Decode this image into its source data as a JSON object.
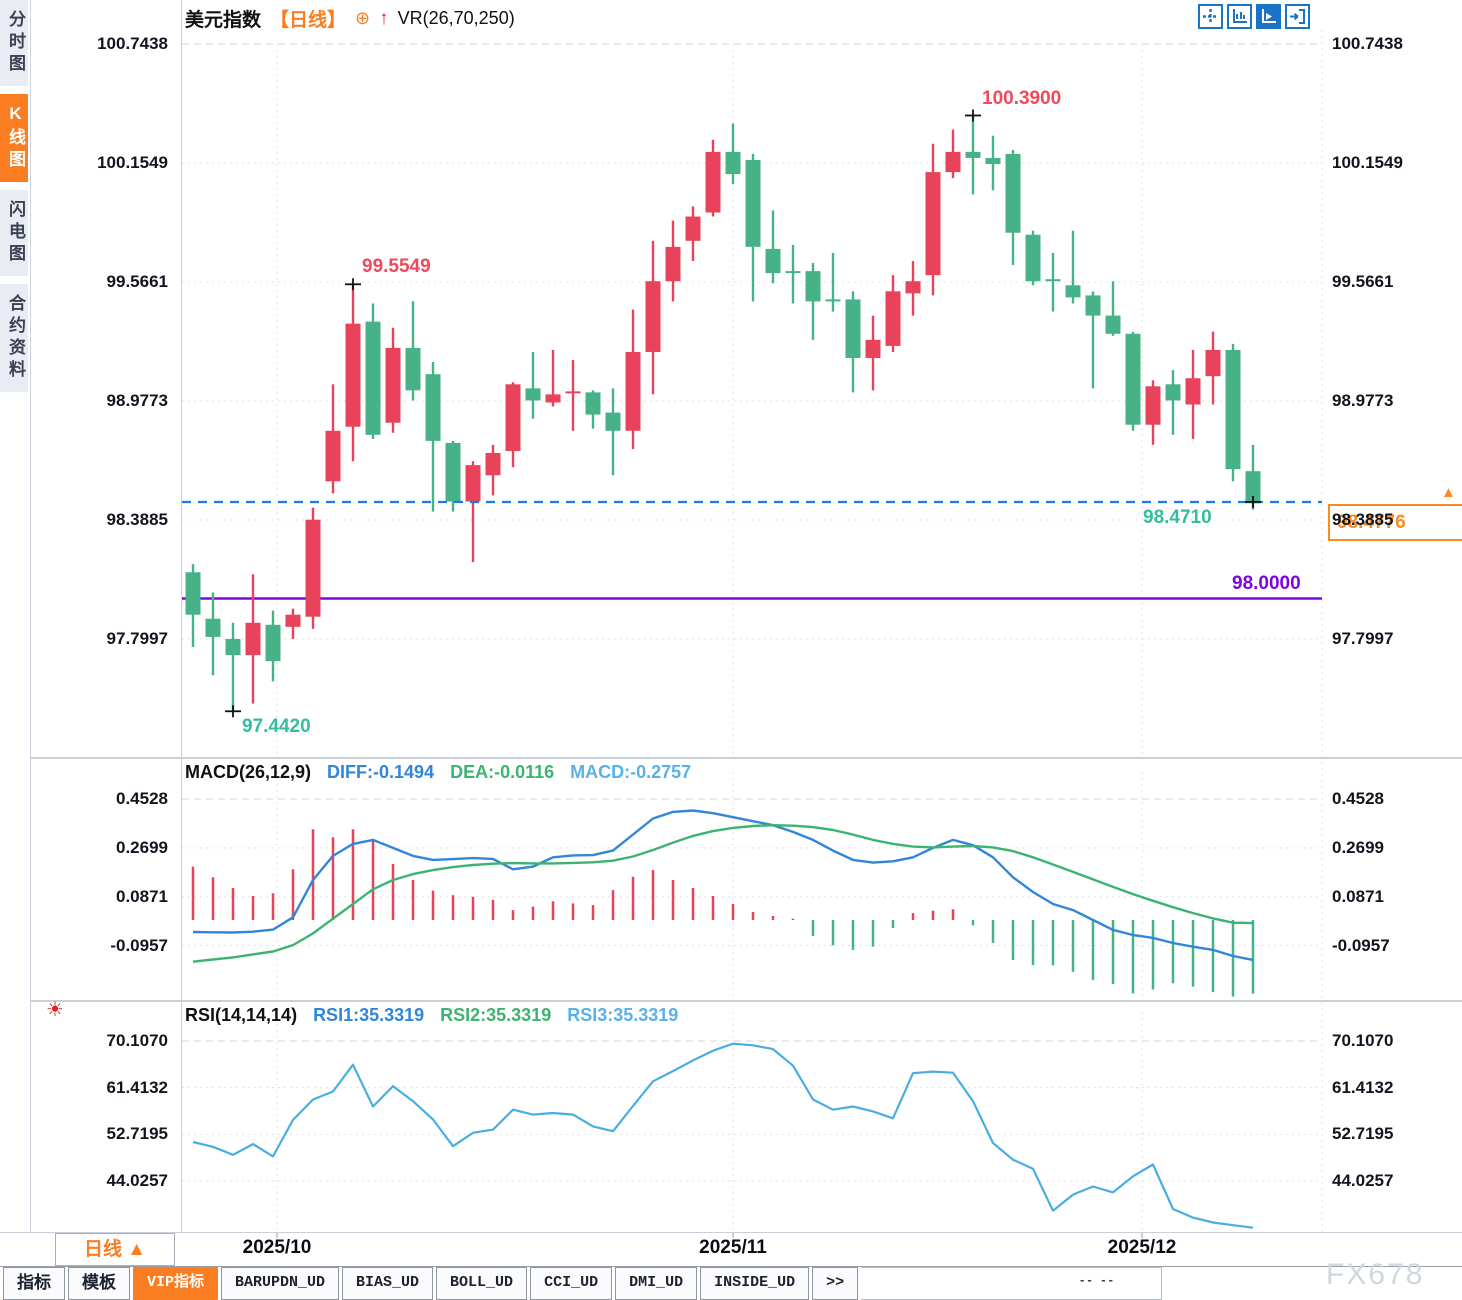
{
  "header": {
    "symbol": "美元指数",
    "period_tag": "【日线】",
    "plus_icon": "⊕",
    "arrow_icon": "↑",
    "indicator_label": "VR(26,70,250)",
    "toolbar_icons": [
      "pan-crosshair-icon",
      "axis-range-icon",
      "auto-scale-icon",
      "jump-to-latest-icon"
    ]
  },
  "sidebar": {
    "items": [
      {
        "label": "分时图",
        "selected": false
      },
      {
        "label": "K线图",
        "selected": true
      },
      {
        "label": "闪电图",
        "selected": false
      },
      {
        "label": "合约资料",
        "selected": false
      }
    ]
  },
  "price_axis_labels": [
    "100.7438",
    "100.1549",
    "99.5661",
    "98.9773",
    "98.3885",
    "97.7997"
  ],
  "annotations": {
    "swing_high": "100.3900",
    "swing_high_oct": "99.5549",
    "swing_low": "97.4420",
    "last_close_label": "98.4710",
    "current_price_box": "98.4776",
    "price_marker": "▲",
    "alert_line_label": "98.0000"
  },
  "macd_pane": {
    "title": "MACD(26,12,9)",
    "diff_label": "DIFF:-0.1494",
    "dea_label": "DEA:-0.0116",
    "macd_label": "MACD:-0.2757",
    "axis_labels": [
      "0.4528",
      "0.2699",
      "0.0871",
      "-0.0957"
    ]
  },
  "rsi_pane": {
    "title": "RSI(14,14,14)",
    "rsi1_label": "RSI1:35.3319",
    "rsi2_label": "RSI2:35.3319",
    "rsi3_label": "RSI3:35.3319",
    "axis_labels": [
      "70.1070",
      "61.4132",
      "52.7195",
      "44.0257"
    ],
    "settings_icon": "☀"
  },
  "timeline": {
    "period_selector": "日线",
    "period_arrow": "▲",
    "dates": [
      "2025/10",
      "2025/11",
      "2025/12"
    ],
    "date_indices": [
      4.2,
      27,
      47.45
    ]
  },
  "bottom_tabs": {
    "labels": [
      "指标",
      "模板",
      "VIP指标",
      "BARUPDN_UD",
      "BIAS_UD",
      "BOLL_UD",
      "CCI_UD",
      "DMI_UD",
      "INSIDE_UD",
      ">>"
    ],
    "selected_index": 2,
    "artifact": "-- --"
  },
  "watermark": "FX678",
  "colors": {
    "up": "#e8435a",
    "down": "#47b287",
    "accent_orange": "#fb7d21",
    "alert_purple": "#7d05e0",
    "price_line_blue": "#1a7ce8",
    "diff_blue": "#3186d9",
    "dea_green": "#3cb371",
    "rsi_lightblue": "#49ade2"
  },
  "chart_data": {
    "type": "candlestick",
    "title": "美元指数 日线",
    "panes": [
      "price",
      "MACD(26,12,9)",
      "RSI(14,14,14)"
    ],
    "x_axis": {
      "labels": [
        "2025/10",
        "2025/11",
        "2025/12"
      ],
      "label_indices": [
        4.2,
        27,
        47.45
      ]
    },
    "price_axis_ticks": [
      100.7438,
      100.1549,
      99.5661,
      98.9773,
      98.3885,
      97.7997
    ],
    "macd_axis_ticks": [
      0.4528,
      0.2699,
      0.0871,
      -0.0957
    ],
    "rsi_axis_ticks": [
      70.107,
      61.4132,
      52.7195,
      44.0257
    ],
    "levels": {
      "current_price": 98.4776,
      "last_close": 98.471,
      "alert_line": 98.0
    },
    "markers": [
      {
        "index": 2,
        "price": 97.442
      },
      {
        "index": 8,
        "price": 99.5549
      },
      {
        "index": 39,
        "price": 100.39
      },
      {
        "index": 53,
        "price": 98.478
      }
    ],
    "candles": {
      "open": [
        98.13,
        97.9,
        97.8,
        97.72,
        97.87,
        97.86,
        97.91,
        98.58,
        98.85,
        99.37,
        98.87,
        99.24,
        99.11,
        98.77,
        98.48,
        98.61,
        98.73,
        99.04,
        98.97,
        99.02,
        99.02,
        98.92,
        98.83,
        99.22,
        99.57,
        99.77,
        99.91,
        100.21,
        100.17,
        99.73,
        99.62,
        99.62,
        99.48,
        99.48,
        99.19,
        99.25,
        99.51,
        99.6,
        100.11,
        100.21,
        100.18,
        100.2,
        99.8,
        99.58,
        99.55,
        99.5,
        99.4,
        99.31,
        98.86,
        99.06,
        98.96,
        99.1,
        99.23,
        98.63
      ],
      "high": [
        98.17,
        98.03,
        97.88,
        98.12,
        97.94,
        97.95,
        98.45,
        99.06,
        99.5549,
        99.46,
        99.34,
        99.47,
        99.17,
        98.78,
        98.68,
        98.76,
        99.07,
        99.22,
        99.23,
        99.18,
        99.03,
        99.04,
        99.43,
        99.77,
        99.87,
        99.94,
        100.27,
        100.35,
        100.2,
        99.92,
        99.75,
        99.66,
        99.71,
        99.52,
        99.4,
        99.6,
        99.67,
        100.25,
        100.32,
        100.39,
        100.29,
        100.22,
        99.82,
        99.71,
        99.82,
        99.52,
        99.57,
        99.32,
        99.08,
        99.13,
        99.23,
        99.32,
        99.26,
        98.76
      ],
      "low": [
        97.76,
        97.62,
        97.442,
        97.48,
        97.59,
        97.8,
        97.85,
        98.52,
        98.68,
        98.79,
        98.82,
        98.98,
        98.43,
        98.43,
        98.18,
        98.51,
        98.65,
        98.89,
        98.95,
        98.83,
        98.84,
        98.61,
        98.74,
        99.01,
        99.47,
        99.67,
        99.89,
        100.05,
        99.47,
        99.56,
        99.46,
        99.28,
        99.42,
        99.02,
        99.03,
        99.22,
        99.4,
        99.5,
        100.08,
        100.0,
        100.02,
        99.65,
        99.55,
        99.42,
        99.46,
        99.04,
        99.3,
        98.83,
        98.76,
        98.81,
        98.79,
        98.96,
        98.58,
        98.44
      ],
      "close": [
        97.92,
        97.81,
        97.72,
        97.88,
        97.69,
        97.92,
        98.39,
        98.83,
        99.36,
        98.81,
        99.24,
        99.03,
        98.78,
        98.48,
        98.66,
        98.72,
        99.06,
        98.98,
        99.01,
        99.025,
        98.91,
        98.83,
        99.22,
        99.57,
        99.74,
        99.89,
        100.21,
        100.1,
        99.74,
        99.61,
        99.615,
        99.47,
        99.475,
        99.19,
        99.28,
        99.52,
        99.57,
        100.11,
        100.21,
        100.18,
        100.15,
        99.81,
        99.57,
        99.575,
        99.49,
        99.4,
        99.31,
        98.86,
        99.05,
        98.98,
        99.09,
        99.23,
        98.64,
        98.471
      ]
    },
    "macd": {
      "diff": [
        -0.045,
        -0.046,
        -0.047,
        -0.044,
        -0.036,
        0.01,
        0.15,
        0.24,
        0.285,
        0.3,
        0.27,
        0.24,
        0.225,
        0.228,
        0.232,
        0.229,
        0.19,
        0.2,
        0.235,
        0.242,
        0.243,
        0.26,
        0.32,
        0.38,
        0.405,
        0.41,
        0.4,
        0.385,
        0.37,
        0.355,
        0.33,
        0.3,
        0.26,
        0.225,
        0.215,
        0.22,
        0.235,
        0.27,
        0.3,
        0.28,
        0.235,
        0.16,
        0.105,
        0.06,
        0.037,
        0.0,
        -0.037,
        -0.056,
        -0.067,
        -0.086,
        -0.1,
        -0.112,
        -0.135,
        -0.1494
      ],
      "dea": [
        -0.156,
        -0.148,
        -0.14,
        -0.129,
        -0.118,
        -0.094,
        -0.05,
        0.005,
        0.06,
        0.115,
        0.15,
        0.172,
        0.187,
        0.198,
        0.206,
        0.211,
        0.213,
        0.212,
        0.212,
        0.214,
        0.216,
        0.222,
        0.238,
        0.262,
        0.29,
        0.315,
        0.333,
        0.345,
        0.352,
        0.355,
        0.353,
        0.348,
        0.337,
        0.32,
        0.3,
        0.285,
        0.275,
        0.272,
        0.275,
        0.277,
        0.272,
        0.258,
        0.235,
        0.208,
        0.18,
        0.152,
        0.124,
        0.097,
        0.072,
        0.048,
        0.026,
        0.006,
        -0.01,
        -0.0116
      ],
      "hist": [
        0.2,
        0.16,
        0.12,
        0.09,
        0.1,
        0.19,
        0.34,
        0.31,
        0.34,
        0.3,
        0.21,
        0.15,
        0.11,
        0.093,
        0.087,
        0.075,
        0.037,
        0.05,
        0.07,
        0.062,
        0.056,
        0.112,
        0.162,
        0.187,
        0.15,
        0.12,
        0.09,
        0.06,
        0.03,
        0.015,
        0.005,
        -0.06,
        -0.095,
        -0.112,
        -0.1,
        -0.03,
        0.026,
        0.035,
        0.04,
        -0.02,
        -0.086,
        -0.15,
        -0.169,
        -0.17,
        -0.194,
        -0.225,
        -0.24,
        -0.275,
        -0.26,
        -0.237,
        -0.25,
        -0.27,
        -0.287,
        -0.2757
      ]
    },
    "rsi": [
      51.3,
      50.4,
      48.9,
      50.9,
      48.6,
      55.4,
      59.2,
      60.7,
      65.7,
      57.9,
      61.7,
      58.9,
      55.5,
      50.5,
      53.0,
      53.6,
      57.3,
      56.4,
      56.7,
      56.4,
      54.2,
      53.3,
      58.0,
      62.6,
      64.5,
      66.5,
      68.3,
      69.6,
      69.3,
      68.6,
      65.5,
      59.2,
      57.3,
      57.9,
      57.0,
      55.7,
      64.1,
      64.4,
      64.2,
      58.9,
      51.1,
      48.0,
      46.3,
      38.5,
      41.5,
      43.0,
      41.9,
      44.9,
      47.1,
      38.8,
      37.2,
      36.3,
      35.8,
      35.33
    ]
  }
}
